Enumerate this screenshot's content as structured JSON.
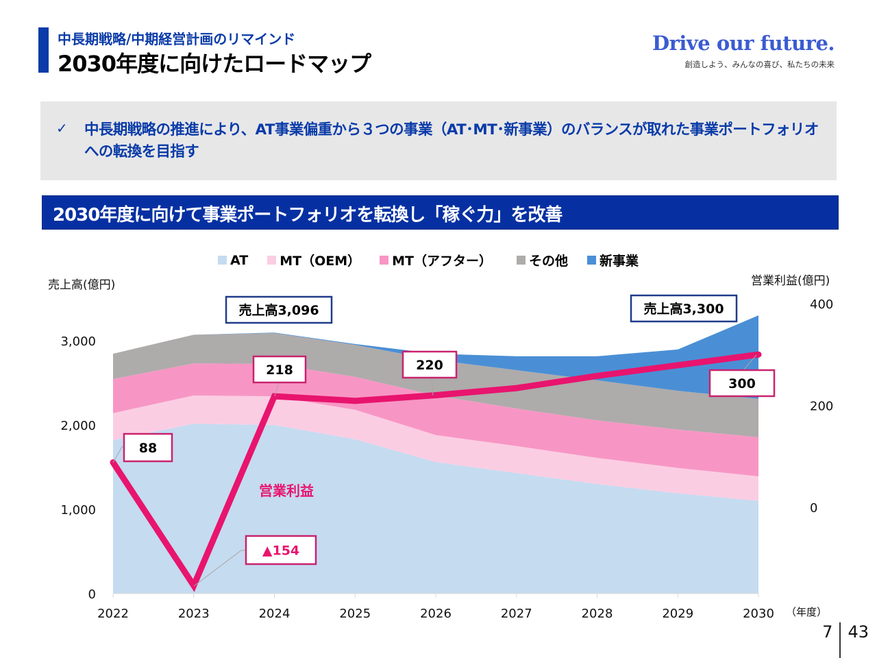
{
  "header": {
    "subtitle": "中長期戦略/中期経営計画のリマインド",
    "title": "2030年度に向けたロードマップ",
    "brand_slogan": "Drive our future.",
    "brand_tagline": "創造しよう、みんなの喜び、私たちの未来"
  },
  "notice": {
    "check_icon": "✓",
    "text": "中長期戦略の推進により、AT事業偏重から３つの事業（AT･MT･新事業）のバランスが取れた事業ポートフォリオへの転換を目指す"
  },
  "banner": {
    "text": "2030年度に向けて事業ポートフォリオを転換し「稼ぐ力」を改善"
  },
  "colors": {
    "brand_blue": "#0a3ba8",
    "banner_blue": "#0630a2",
    "profit_line": "#e8146e",
    "callout_sales_border": "#1f3b8a",
    "callout_profit_border": "#c8236e"
  },
  "chart_data": {
    "type": "area",
    "title": "",
    "xlabel": "(年度)",
    "ylabel": "売上高(億円)",
    "y2label": "営業利益(億円)",
    "x": [
      "2022",
      "2023",
      "2024",
      "2025",
      "2026",
      "2027",
      "2028",
      "2029",
      "2030"
    ],
    "ylim": [
      0,
      3500
    ],
    "yticks": [
      "0",
      "1,000",
      "2,000",
      "3,000"
    ],
    "yticks_values": [
      0,
      1000,
      2000,
      3000
    ],
    "y2lim": [
      -170,
      420
    ],
    "y2ticks": [
      "0",
      "200",
      "400"
    ],
    "y2ticks_values": [
      0,
      200,
      400
    ],
    "stacked": true,
    "legend_position": "top",
    "series": [
      {
        "name": "AT",
        "color": "#c5dbf0",
        "values": [
          1820,
          2015,
          2000,
          1830,
          1560,
          1430,
          1300,
          1190,
          1100
        ]
      },
      {
        "name": "MT（OEM）",
        "color": "#fbcde3",
        "values": [
          320,
          335,
          340,
          350,
          320,
          320,
          310,
          300,
          290
        ]
      },
      {
        "name": "MT（アフター）",
        "color": "#f796c4",
        "values": [
          405,
          380,
          385,
          390,
          470,
          445,
          445,
          455,
          465
        ]
      },
      {
        "name": "その他",
        "color": "#aeabab",
        "values": [
          300,
          340,
          365,
          380,
          420,
          455,
          475,
          460,
          455
        ]
      },
      {
        "name": "新事業",
        "color": "#4a8fd5",
        "values": [
          0,
          0,
          6,
          10,
          75,
          165,
          285,
          490,
          990
        ]
      }
    ],
    "line_series": {
      "name": "営業利益",
      "axis": "right",
      "color": "#e8146e",
      "values": [
        88,
        -154,
        218,
        209,
        220,
        234,
        258,
        279,
        300
      ]
    },
    "annotations": [
      {
        "text": "売上高3,096",
        "x": "2024",
        "kind": "sales"
      },
      {
        "text": "売上高3,300",
        "x": "2030",
        "kind": "sales"
      },
      {
        "text": "88",
        "x": "2022",
        "kind": "profit"
      },
      {
        "text": "▲154",
        "x": "2023",
        "kind": "profit-negative"
      },
      {
        "text": "218",
        "x": "2024",
        "kind": "profit"
      },
      {
        "text": "220",
        "x": "2026",
        "kind": "profit"
      },
      {
        "text": "300",
        "x": "2030",
        "kind": "profit"
      },
      {
        "text": "営業利益",
        "x": "2024",
        "kind": "line-label"
      }
    ]
  },
  "footer": {
    "page_current": "7",
    "page_total": "43"
  }
}
